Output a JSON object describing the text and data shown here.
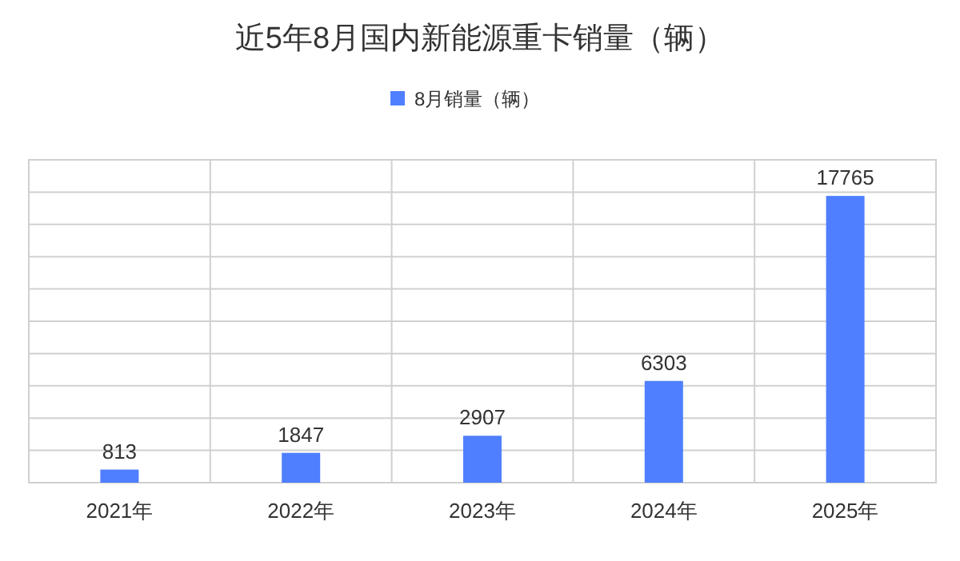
{
  "chart_data": {
    "type": "bar",
    "title": "近5年8月国内新能源重卡销量（辆）",
    "categories": [
      "2021年",
      "2022年",
      "2023年",
      "2024年",
      "2025年"
    ],
    "series": [
      {
        "name": "8月销量（辆）",
        "color": "#4f7fff",
        "values": [
          813,
          1847,
          2907,
          6303,
          17765
        ]
      }
    ],
    "ylim": [
      0,
      20000
    ],
    "yticks": [
      {
        "value": 0,
        "label": null
      },
      {
        "value": 2000,
        "label": null
      },
      {
        "value": 4000,
        "label": null
      },
      {
        "value": 6000,
        "label": null
      },
      {
        "value": 8000,
        "label": null
      },
      {
        "value": 10000,
        "label": null
      },
      {
        "value": 12000,
        "label": null
      },
      {
        "value": 14000,
        "label": null
      },
      {
        "value": 16000,
        "label": null
      },
      {
        "value": 18000,
        "label": null
      },
      {
        "value": 20000,
        "label": null
      }
    ],
    "tick_labels": "x",
    "grid": true,
    "legend": "top",
    "data_labels": true
  }
}
